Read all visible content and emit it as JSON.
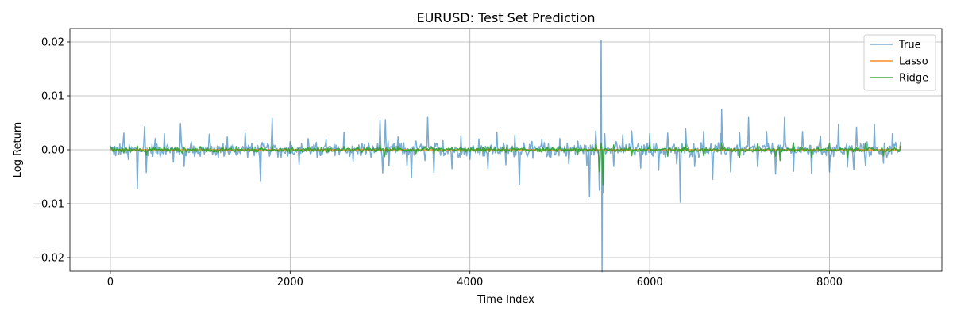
{
  "chart_data": {
    "type": "line",
    "title": "EURUSD: Test Set Prediction",
    "xlabel": "Time Index",
    "ylabel": "Log Return",
    "xlim": [
      -450,
      9250
    ],
    "ylim": [
      -0.0225,
      0.0225
    ],
    "xticks": [
      0,
      2000,
      4000,
      6000,
      8000
    ],
    "xtick_labels": [
      "0",
      "2000",
      "4000",
      "6000",
      "8000"
    ],
    "yticks": [
      -0.02,
      -0.01,
      0.0,
      0.01,
      0.02
    ],
    "ytick_labels": [
      "−0.02",
      "−0.01",
      "0.00",
      "0.01",
      "0.02"
    ],
    "grid": true,
    "legend_position": "top-right",
    "series": [
      {
        "name": "True",
        "color": "#1f77b4",
        "opacity": 0.6,
        "x": [
          0,
          60,
          150,
          200,
          300,
          380,
          400,
          500,
          600,
          700,
          780,
          820,
          900,
          1000,
          1100,
          1200,
          1300,
          1400,
          1500,
          1600,
          1670,
          1750,
          1800,
          1900,
          2000,
          2100,
          2200,
          2300,
          2400,
          2500,
          2600,
          2700,
          2800,
          2900,
          3000,
          3030,
          3060,
          3100,
          3200,
          3300,
          3350,
          3400,
          3500,
          3530,
          3600,
          3700,
          3800,
          3900,
          4000,
          4100,
          4200,
          4300,
          4400,
          4500,
          4550,
          4600,
          4700,
          4800,
          4900,
          5000,
          5100,
          5200,
          5300,
          5330,
          5400,
          5440,
          5460,
          5470,
          5480,
          5500,
          5600,
          5700,
          5800,
          5900,
          6000,
          6100,
          6200,
          6300,
          6340,
          6400,
          6500,
          6600,
          6700,
          6790,
          6800,
          6900,
          7000,
          7100,
          7200,
          7300,
          7400,
          7500,
          7600,
          7700,
          7800,
          7900,
          8000,
          8100,
          8200,
          8270,
          8300,
          8400,
          8500,
          8600,
          8700,
          8790
        ],
        "values": [
          0.0008,
          -0.0011,
          0.0031,
          -0.0018,
          -0.0072,
          0.0043,
          -0.0042,
          0.0021,
          0.003,
          -0.0023,
          0.0049,
          -0.0031,
          0.0015,
          -0.0012,
          0.0029,
          -0.0015,
          0.0024,
          -0.001,
          0.0031,
          -0.0011,
          -0.0059,
          0.0012,
          0.0058,
          -0.0014,
          0.0015,
          -0.0027,
          0.0021,
          -0.0015,
          0.0019,
          -0.0011,
          0.0033,
          -0.0021,
          0.0012,
          -0.0014,
          0.0055,
          -0.0043,
          0.0056,
          -0.003,
          0.0024,
          -0.003,
          -0.0051,
          0.0016,
          -0.002,
          0.006,
          -0.0042,
          0.0017,
          -0.0035,
          0.0026,
          -0.0018,
          0.002,
          -0.0035,
          0.0033,
          -0.0028,
          0.0027,
          -0.0064,
          0.0013,
          -0.0016,
          0.0019,
          -0.0015,
          0.0021,
          -0.0026,
          0.0016,
          -0.003,
          -0.0087,
          0.0035,
          -0.0075,
          0.0203,
          -0.0226,
          -0.008,
          0.003,
          -0.0031,
          0.0028,
          0.0035,
          -0.0034,
          0.003,
          -0.0038,
          0.0031,
          -0.0026,
          -0.0097,
          0.0039,
          -0.0031,
          0.0034,
          -0.0055,
          0.003,
          0.0075,
          -0.0041,
          0.0032,
          0.006,
          -0.0031,
          0.0034,
          -0.0045,
          0.006,
          -0.004,
          0.0034,
          -0.0044,
          0.0025,
          -0.0041,
          0.0047,
          -0.0032,
          -0.0037,
          0.0042,
          -0.0029,
          0.0047,
          -0.0025,
          0.003,
          0.0015
        ]
      },
      {
        "name": "Lasso",
        "color": "#ff7f0e",
        "opacity": 0.9,
        "x": [
          0,
          8790
        ],
        "values": [
          0.0,
          0.0
        ]
      },
      {
        "name": "Ridge",
        "color": "#2ca02c",
        "opacity": 0.9,
        "x": [
          0,
          150,
          300,
          400,
          600,
          800,
          1000,
          1200,
          1400,
          1600,
          1800,
          2000,
          2200,
          2400,
          2600,
          2800,
          3000,
          3050,
          3200,
          3400,
          3500,
          3600,
          3800,
          4000,
          4200,
          4400,
          4600,
          4800,
          5000,
          5200,
          5400,
          5440,
          5460,
          5480,
          5600,
          5800,
          6000,
          6200,
          6400,
          6600,
          6800,
          7000,
          7200,
          7400,
          7450,
          7600,
          7800,
          8000,
          8200,
          8400,
          8600,
          8790
        ],
        "values": [
          0.0004,
          -0.0006,
          0.0007,
          -0.001,
          0.0005,
          -0.0007,
          0.0006,
          -0.0005,
          0.0006,
          -0.0004,
          0.0007,
          -0.0006,
          0.0005,
          -0.0004,
          0.0006,
          -0.0005,
          0.0008,
          -0.0013,
          0.0006,
          -0.0007,
          0.0006,
          -0.0006,
          0.0005,
          -0.0004,
          0.0006,
          -0.0005,
          0.0005,
          -0.0004,
          0.0006,
          -0.0008,
          0.0009,
          -0.004,
          0.0012,
          -0.0066,
          0.0009,
          -0.0011,
          0.001,
          -0.0012,
          0.001,
          -0.0011,
          0.0012,
          -0.0014,
          0.0011,
          -0.0012,
          -0.002,
          0.0013,
          -0.0015,
          0.0012,
          -0.0016,
          0.0013,
          -0.0011,
          0.0008
        ]
      }
    ]
  }
}
